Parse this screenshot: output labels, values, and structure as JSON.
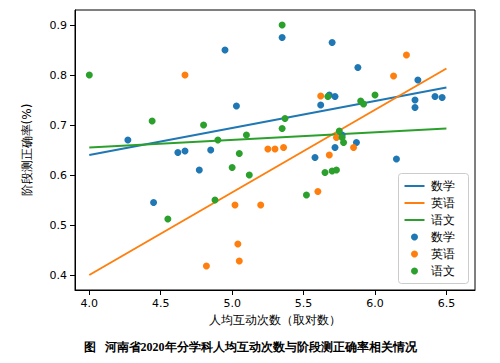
{
  "chart_data": {
    "type": "scatter",
    "title": "图   河南省2020年分学科人均互动次数与阶段测正确率相关情况",
    "x_label": "人均互动次数（取对数）",
    "y_label": "阶段测正确率(%)",
    "xlim": [
      3.9,
      6.7
    ],
    "ylim": [
      0.37,
      0.93
    ],
    "xticks": [
      {
        "value": 4,
        "label": "4.0"
      },
      4.5,
      {
        "value": 5,
        "label": "5.0"
      },
      5.5,
      {
        "value": 6,
        "label": "6.0"
      },
      6.5
    ],
    "yticks": [
      0.4,
      0.5,
      0.6,
      0.7,
      0.8,
      0.9
    ],
    "grid": false,
    "legend": "lower right",
    "series": [
      {
        "name": "数学",
        "type": "line",
        "color": "#1f77b4",
        "x": [
          4.0,
          6.5
        ],
        "values": [
          0.64,
          0.775
        ]
      },
      {
        "name": "英语",
        "type": "line",
        "color": "#ff7f0e",
        "x": [
          4.0,
          6.5
        ],
        "values": [
          0.4,
          0.813
        ]
      },
      {
        "name": "语文",
        "type": "line",
        "color": "#2ca02c",
        "x": [
          4.0,
          6.5
        ],
        "values": [
          0.655,
          0.693
        ]
      },
      {
        "name": "数学",
        "type": "scatter",
        "color": "#1f77b4",
        "x": [
          4.27,
          4.45,
          4.62,
          4.67,
          4.77,
          4.85,
          4.95,
          5.03,
          5.35,
          5.58,
          5.62,
          5.68,
          5.7,
          5.72,
          5.72,
          5.77,
          5.87,
          5.88,
          6.15,
          6.28,
          6.28,
          6.3,
          6.42,
          6.47
        ],
        "values": [
          0.67,
          0.545,
          0.645,
          0.648,
          0.61,
          0.65,
          0.85,
          0.738,
          0.875,
          0.635,
          0.74,
          0.76,
          0.865,
          0.655,
          0.757,
          0.68,
          0.665,
          0.815,
          0.632,
          0.735,
          0.75,
          0.79,
          0.757,
          0.755
        ]
      },
      {
        "name": "英语",
        "type": "scatter",
        "color": "#ff7f0e",
        "x": [
          4.67,
          4.82,
          5.02,
          5.04,
          5.05,
          5.2,
          5.25,
          5.3,
          5.36,
          5.6,
          5.62,
          5.68,
          5.73,
          5.85,
          6.13,
          6.22
        ],
        "values": [
          0.8,
          0.418,
          0.54,
          0.462,
          0.428,
          0.54,
          0.652,
          0.652,
          0.655,
          0.567,
          0.758,
          0.64,
          0.675,
          0.655,
          0.798,
          0.84
        ]
      },
      {
        "name": "语文",
        "type": "scatter",
        "color": "#2ca02c",
        "x": [
          4.0,
          4.44,
          4.55,
          4.8,
          4.88,
          4.9,
          5.0,
          5.05,
          5.1,
          5.12,
          5.35,
          5.35,
          5.37,
          5.52,
          5.65,
          5.67,
          5.7,
          5.73,
          5.75,
          5.77,
          5.78,
          5.9,
          5.92,
          6.0
        ],
        "values": [
          0.8,
          0.708,
          0.512,
          0.7,
          0.55,
          0.67,
          0.615,
          0.643,
          0.68,
          0.6,
          0.9,
          0.693,
          0.713,
          0.56,
          0.605,
          0.757,
          0.608,
          0.61,
          0.688,
          0.675,
          0.665,
          0.748,
          0.742,
          0.76
        ]
      }
    ]
  }
}
